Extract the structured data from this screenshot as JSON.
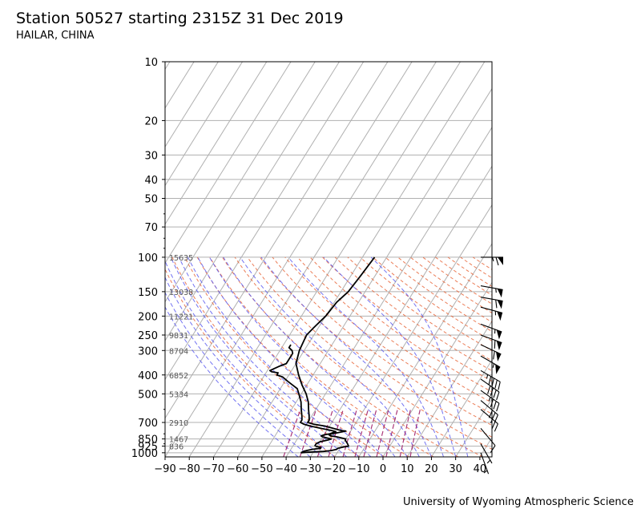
{
  "title": "Station 50527 starting 2315Z 31 Dec 2019",
  "subtitle": "HAILAR, CHINA",
  "credit": "University of Wyoming Atmospheric Science",
  "chart_data": {
    "type": "line",
    "title": "Station 50527 starting 2315Z 31 Dec 2019",
    "subtitle": "HAILAR, CHINA",
    "xlabel": "",
    "ylabel": "",
    "x_axis": {
      "ticks": [
        -90,
        -80,
        -70,
        -60,
        -50,
        -40,
        -30,
        -20,
        -10,
        0,
        10,
        20,
        30,
        40
      ],
      "range": [
        -90,
        45
      ]
    },
    "y_axis": {
      "scale": "log",
      "inverted": true,
      "ticks": [
        10,
        20,
        30,
        40,
        50,
        70,
        100,
        150,
        200,
        250,
        300,
        400,
        500,
        700,
        850,
        925,
        1000
      ],
      "range": [
        1050,
        10
      ]
    },
    "grid": true,
    "height_labels": [
      {
        "p": 100,
        "label": "15635"
      },
      {
        "p": 150,
        "label": "13038"
      },
      {
        "p": 200,
        "label": "11221"
      },
      {
        "p": 250,
        "label": "9831"
      },
      {
        "p": 300,
        "label": "8704"
      },
      {
        "p": 400,
        "label": "6852"
      },
      {
        "p": 500,
        "label": "5334"
      },
      {
        "p": 700,
        "label": "2910"
      },
      {
        "p": 850,
        "label": "1467"
      },
      {
        "p": 925,
        "label": "836"
      }
    ],
    "series": [
      {
        "color": "#000000",
        "points": [
          [
            1000,
            -35
          ],
          [
            995,
            -33
          ],
          [
            990,
            -30
          ],
          [
            985,
            -26
          ],
          [
            975,
            -23
          ],
          [
            960,
            -21
          ],
          [
            950,
            -21
          ],
          [
            935,
            -19
          ],
          [
            925,
            -17
          ],
          [
            900,
            -18
          ],
          [
            880,
            -19
          ],
          [
            860,
            -20
          ],
          [
            850,
            -20
          ],
          [
            840,
            -22
          ],
          [
            830,
            -24
          ],
          [
            820,
            -27
          ],
          [
            810,
            -28
          ],
          [
            800,
            -27
          ],
          [
            790,
            -25
          ],
          [
            780,
            -23
          ],
          [
            775,
            -22
          ],
          [
            770,
            -24
          ],
          [
            760,
            -26
          ],
          [
            745,
            -29
          ],
          [
            730,
            -32
          ],
          [
            715,
            -37
          ],
          [
            700,
            -40
          ],
          [
            680,
            -40
          ],
          [
            650,
            -41
          ],
          [
            600,
            -43
          ],
          [
            550,
            -45
          ],
          [
            500,
            -48
          ],
          [
            450,
            -52
          ],
          [
            400,
            -56
          ],
          [
            350,
            -60
          ],
          [
            300,
            -62
          ],
          [
            250,
            -63
          ],
          [
            230,
            -62
          ],
          [
            200,
            -60
          ],
          [
            170,
            -59
          ],
          [
            150,
            -57
          ],
          [
            125,
            -56
          ],
          [
            100,
            -55
          ]
        ]
      },
      {
        "color": "#000000",
        "points": [
          [
            1000,
            -35
          ],
          [
            980,
            -34
          ],
          [
            960,
            -31
          ],
          [
            950,
            -28
          ],
          [
            940,
            -28
          ],
          [
            930,
            -30
          ],
          [
            920,
            -31
          ],
          [
            900,
            -31
          ],
          [
            880,
            -30
          ],
          [
            860,
            -27
          ],
          [
            850,
            -26
          ],
          [
            840,
            -28
          ],
          [
            830,
            -30
          ],
          [
            820,
            -31
          ],
          [
            810,
            -30
          ],
          [
            800,
            -28
          ],
          [
            790,
            -27
          ],
          [
            780,
            -26
          ],
          [
            770,
            -28
          ],
          [
            750,
            -33
          ],
          [
            730,
            -38
          ],
          [
            715,
            -41
          ],
          [
            700,
            -43
          ],
          [
            680,
            -43
          ],
          [
            650,
            -44
          ],
          [
            600,
            -46
          ],
          [
            550,
            -48
          ],
          [
            500,
            -51
          ],
          [
            470,
            -53
          ],
          [
            450,
            -56
          ],
          [
            430,
            -59
          ],
          [
            410,
            -62
          ],
          [
            400,
            -65
          ],
          [
            390,
            -65
          ],
          [
            385,
            -68
          ],
          [
            380,
            -69
          ],
          [
            360,
            -66
          ],
          [
            350,
            -64
          ],
          [
            330,
            -64
          ],
          [
            310,
            -64
          ],
          [
            300,
            -65
          ],
          [
            290,
            -67
          ],
          [
            280,
            -67
          ]
        ]
      }
    ],
    "wind_barbs": [
      {
        "p": 100,
        "dir": 270,
        "speed": 65
      },
      {
        "p": 140,
        "dir": 280,
        "speed": 55
      },
      {
        "p": 160,
        "dir": 280,
        "speed": 60
      },
      {
        "p": 180,
        "dir": 285,
        "speed": 55
      },
      {
        "p": 220,
        "dir": 290,
        "speed": 55
      },
      {
        "p": 250,
        "dir": 290,
        "speed": 60
      },
      {
        "p": 280,
        "dir": 295,
        "speed": 60
      },
      {
        "p": 320,
        "dir": 300,
        "speed": 55
      },
      {
        "p": 380,
        "dir": 300,
        "speed": 45
      },
      {
        "p": 420,
        "dir": 305,
        "speed": 40
      },
      {
        "p": 480,
        "dir": 305,
        "speed": 35
      },
      {
        "p": 540,
        "dir": 310,
        "speed": 30
      },
      {
        "p": 600,
        "dir": 310,
        "speed": 25
      },
      {
        "p": 750,
        "dir": 320,
        "speed": 10
      },
      {
        "p": 900,
        "dir": 330,
        "speed": 5
      },
      {
        "p": 1000,
        "dir": 340,
        "speed": 5
      }
    ],
    "colors": {
      "dry_adiabat": "#e8663a",
      "moist_adiabat": "#5a5af0",
      "mixing_ratio": "#a0206a",
      "grid": "#b0b0b0"
    }
  }
}
